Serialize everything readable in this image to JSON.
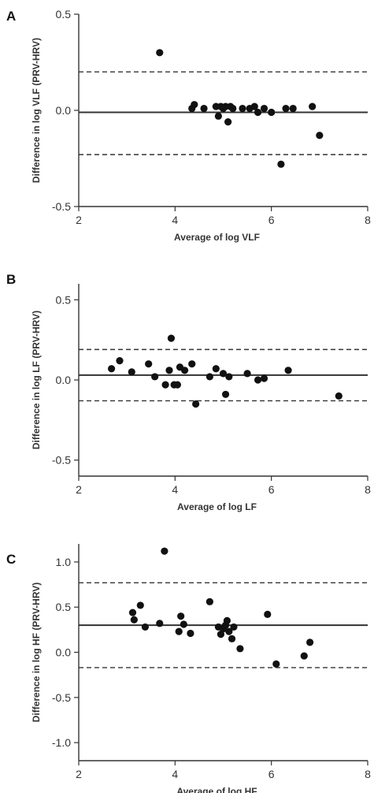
{
  "chart_data": [
    {
      "type": "scatter",
      "panel": "A",
      "xlabel": "Average of log VLF",
      "ylabel": "Difference in log VLF (PRV-HRV)",
      "xlim": [
        2,
        8
      ],
      "ylim": [
        -0.5,
        0.5
      ],
      "xticks": [
        2,
        4,
        6,
        8
      ],
      "yticks": [
        0.5,
        0.0,
        -0.5
      ],
      "ytick_labels": [
        "0.5",
        "0.0",
        "-0.5"
      ],
      "xtick_labels": [
        "2",
        "4",
        "6",
        "8"
      ],
      "mean_line": -0.01,
      "limits": [
        0.2,
        -0.23
      ],
      "points": [
        [
          3.68,
          0.3
        ],
        [
          4.35,
          0.01
        ],
        [
          4.4,
          0.03
        ],
        [
          4.6,
          0.01
        ],
        [
          4.85,
          0.02
        ],
        [
          4.9,
          -0.03
        ],
        [
          4.95,
          0.02
        ],
        [
          5.0,
          0.01
        ],
        [
          5.05,
          0.02
        ],
        [
          5.1,
          -0.06
        ],
        [
          5.15,
          0.02
        ],
        [
          5.2,
          0.01
        ],
        [
          5.4,
          0.01
        ],
        [
          5.55,
          0.01
        ],
        [
          5.65,
          0.02
        ],
        [
          5.72,
          -0.01
        ],
        [
          5.85,
          0.01
        ],
        [
          6.0,
          -0.01
        ],
        [
          6.2,
          -0.28
        ],
        [
          6.3,
          0.01
        ],
        [
          6.45,
          0.01
        ],
        [
          6.85,
          0.02
        ],
        [
          7.0,
          -0.13
        ]
      ]
    },
    {
      "type": "scatter",
      "panel": "B",
      "xlabel": "Average of log LF",
      "ylabel": "Difference in log LF (PRV-HRV)",
      "xlim": [
        2,
        8
      ],
      "ylim": [
        -0.6,
        0.6
      ],
      "xticks": [
        2,
        4,
        6,
        8
      ],
      "yticks": [
        0.5,
        0.0,
        -0.5
      ],
      "ytick_labels": [
        "0.5",
        "0.0",
        "-0.5"
      ],
      "xtick_labels": [
        "2",
        "4",
        "6",
        "8"
      ],
      "mean_line": 0.03,
      "limits": [
        0.19,
        -0.13
      ],
      "points": [
        [
          2.68,
          0.07
        ],
        [
          2.85,
          0.12
        ],
        [
          3.1,
          0.05
        ],
        [
          3.45,
          0.1
        ],
        [
          3.58,
          0.02
        ],
        [
          3.8,
          -0.03
        ],
        [
          3.88,
          0.06
        ],
        [
          3.92,
          0.26
        ],
        [
          3.98,
          -0.03
        ],
        [
          4.05,
          -0.03
        ],
        [
          4.1,
          0.08
        ],
        [
          4.2,
          0.06
        ],
        [
          4.35,
          0.1
        ],
        [
          4.43,
          -0.15
        ],
        [
          4.72,
          0.02
        ],
        [
          4.85,
          0.07
        ],
        [
          5.0,
          0.04
        ],
        [
          5.05,
          -0.09
        ],
        [
          5.12,
          0.02
        ],
        [
          5.5,
          0.04
        ],
        [
          5.72,
          0.0
        ],
        [
          5.85,
          0.01
        ],
        [
          6.35,
          0.06
        ],
        [
          7.4,
          -0.1
        ]
      ]
    },
    {
      "type": "scatter",
      "panel": "C",
      "xlabel": "Average of log HF",
      "ylabel": "Difference in log HF (PRV-HRV)",
      "xlim": [
        2,
        8
      ],
      "ylim": [
        -1.2,
        1.2
      ],
      "xticks": [
        2,
        4,
        6,
        8
      ],
      "yticks": [
        1.0,
        0.5,
        0.0,
        -0.5,
        -1.0
      ],
      "ytick_labels": [
        "1.0",
        "0.5",
        "0.0",
        "-0.5",
        "-1.0"
      ],
      "xtick_labels": [
        "2",
        "4",
        "6",
        "8"
      ],
      "mean_line": 0.3,
      "limits": [
        0.77,
        -0.17
      ],
      "points": [
        [
          3.12,
          0.44
        ],
        [
          3.15,
          0.36
        ],
        [
          3.28,
          0.52
        ],
        [
          3.38,
          0.28
        ],
        [
          3.68,
          0.32
        ],
        [
          3.78,
          1.12
        ],
        [
          4.08,
          0.23
        ],
        [
          4.12,
          0.4
        ],
        [
          4.18,
          0.31
        ],
        [
          4.32,
          0.21
        ],
        [
          4.72,
          0.56
        ],
        [
          4.9,
          0.28
        ],
        [
          4.95,
          0.2
        ],
        [
          5.0,
          0.26
        ],
        [
          5.05,
          0.3
        ],
        [
          5.08,
          0.35
        ],
        [
          5.12,
          0.23
        ],
        [
          5.18,
          0.15
        ],
        [
          5.22,
          0.28
        ],
        [
          5.35,
          0.04
        ],
        [
          5.92,
          0.42
        ],
        [
          6.1,
          -0.13
        ],
        [
          6.68,
          -0.04
        ],
        [
          6.8,
          0.11
        ]
      ]
    }
  ]
}
